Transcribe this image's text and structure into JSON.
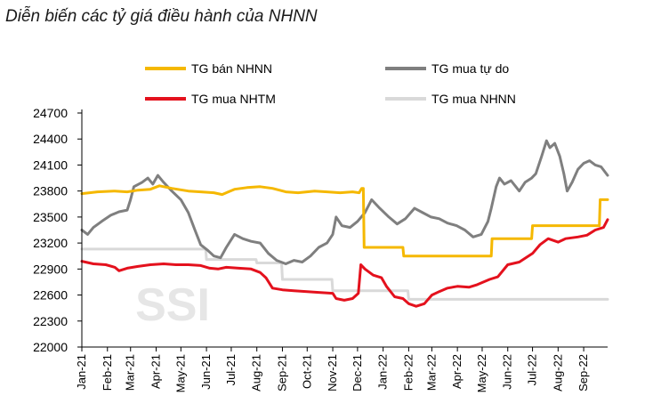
{
  "chart_data": {
    "type": "line",
    "title": "Diễn biến các tỷ giá điều hành của NHNN",
    "watermark": "SSI",
    "xlabel": "",
    "ylabel": "",
    "ylim": [
      22000,
      24700
    ],
    "y_ticks": [
      22000,
      22300,
      22600,
      22900,
      23200,
      23500,
      23800,
      24100,
      24400,
      24700
    ],
    "x_range": [
      "2021-01-01",
      "2022-09-30"
    ],
    "x_ticks": [
      {
        "label": "Jan-21",
        "date": "2021-01-01"
      },
      {
        "label": "Feb-21",
        "date": "2021-02-01"
      },
      {
        "label": "Mar-21",
        "date": "2021-03-01"
      },
      {
        "label": "Apr-21",
        "date": "2021-04-01"
      },
      {
        "label": "May-21",
        "date": "2021-05-01"
      },
      {
        "label": "Jun-21",
        "date": "2021-06-01"
      },
      {
        "label": "Jul-21",
        "date": "2021-07-01"
      },
      {
        "label": "Aug-21",
        "date": "2021-08-01"
      },
      {
        "label": "Sep-21",
        "date": "2021-09-01"
      },
      {
        "label": "Oct-21",
        "date": "2021-10-01"
      },
      {
        "label": "Nov-21",
        "date": "2021-11-01"
      },
      {
        "label": "Dec-21",
        "date": "2021-12-01"
      },
      {
        "label": "Jan-22",
        "date": "2022-01-01"
      },
      {
        "label": "Feb-22",
        "date": "2022-02-01"
      },
      {
        "label": "Mar-22",
        "date": "2022-03-01"
      },
      {
        "label": "Apr-22",
        "date": "2022-04-01"
      },
      {
        "label": "May-22",
        "date": "2022-05-01"
      },
      {
        "label": "Jun-22",
        "date": "2022-06-01"
      },
      {
        "label": "Jul-22",
        "date": "2022-07-01"
      },
      {
        "label": "Aug-22",
        "date": "2022-08-01"
      },
      {
        "label": "Sep-22",
        "date": "2022-09-01"
      }
    ],
    "grid": false,
    "legend_position": "top",
    "series": [
      {
        "name": "TG bán NHNN",
        "color": "#f5b800",
        "points": [
          [
            "2021-01-01",
            23770
          ],
          [
            "2021-01-20",
            23790
          ],
          [
            "2021-02-10",
            23800
          ],
          [
            "2021-02-25",
            23790
          ],
          [
            "2021-03-10",
            23810
          ],
          [
            "2021-03-25",
            23820
          ],
          [
            "2021-04-05",
            23860
          ],
          [
            "2021-04-20",
            23830
          ],
          [
            "2021-05-10",
            23800
          ],
          [
            "2021-05-25",
            23790
          ],
          [
            "2021-06-10",
            23780
          ],
          [
            "2021-06-20",
            23760
          ],
          [
            "2021-07-05",
            23820
          ],
          [
            "2021-07-20",
            23840
          ],
          [
            "2021-08-05",
            23850
          ],
          [
            "2021-08-20",
            23830
          ],
          [
            "2021-09-05",
            23790
          ],
          [
            "2021-09-20",
            23780
          ],
          [
            "2021-10-10",
            23800
          ],
          [
            "2021-10-25",
            23790
          ],
          [
            "2021-11-10",
            23780
          ],
          [
            "2021-11-25",
            23790
          ],
          [
            "2021-12-03",
            23780
          ],
          [
            "2021-12-06",
            23830
          ],
          [
            "2021-12-08",
            23830
          ],
          [
            "2021-12-09",
            23150
          ],
          [
            "2022-01-25",
            23150
          ],
          [
            "2022-01-26",
            23050
          ],
          [
            "2022-05-12",
            23050
          ],
          [
            "2022-05-13",
            23250
          ],
          [
            "2022-06-30",
            23250
          ],
          [
            "2022-07-01",
            23400
          ],
          [
            "2022-09-20",
            23400
          ],
          [
            "2022-09-21",
            23700
          ],
          [
            "2022-09-30",
            23700
          ]
        ]
      },
      {
        "name": "TG mua tự do",
        "color": "#7f7f7f",
        "points": [
          [
            "2021-01-01",
            23350
          ],
          [
            "2021-01-08",
            23300
          ],
          [
            "2021-01-15",
            23380
          ],
          [
            "2021-01-25",
            23450
          ],
          [
            "2021-02-05",
            23520
          ],
          [
            "2021-02-15",
            23560
          ],
          [
            "2021-02-25",
            23580
          ],
          [
            "2021-03-01",
            23700
          ],
          [
            "2021-03-05",
            23850
          ],
          [
            "2021-03-15",
            23900
          ],
          [
            "2021-03-22",
            23950
          ],
          [
            "2021-03-28",
            23880
          ],
          [
            "2021-04-03",
            23980
          ],
          [
            "2021-04-10",
            23900
          ],
          [
            "2021-04-20",
            23800
          ],
          [
            "2021-05-01",
            23700
          ],
          [
            "2021-05-10",
            23550
          ],
          [
            "2021-05-18",
            23350
          ],
          [
            "2021-05-25",
            23180
          ],
          [
            "2021-06-02",
            23120
          ],
          [
            "2021-06-10",
            23050
          ],
          [
            "2021-06-18",
            23030
          ],
          [
            "2021-06-25",
            23150
          ],
          [
            "2021-07-05",
            23300
          ],
          [
            "2021-07-15",
            23250
          ],
          [
            "2021-07-25",
            23220
          ],
          [
            "2021-08-05",
            23200
          ],
          [
            "2021-08-15",
            23080
          ],
          [
            "2021-08-25",
            23000
          ],
          [
            "2021-09-05",
            22960
          ],
          [
            "2021-09-15",
            23000
          ],
          [
            "2021-09-25",
            22980
          ],
          [
            "2021-10-05",
            23050
          ],
          [
            "2021-10-15",
            23150
          ],
          [
            "2021-10-25",
            23200
          ],
          [
            "2021-11-01",
            23300
          ],
          [
            "2021-11-05",
            23500
          ],
          [
            "2021-11-12",
            23400
          ],
          [
            "2021-11-22",
            23380
          ],
          [
            "2021-12-01",
            23450
          ],
          [
            "2021-12-10",
            23550
          ],
          [
            "2021-12-18",
            23700
          ],
          [
            "2021-12-28",
            23600
          ],
          [
            "2022-01-08",
            23500
          ],
          [
            "2022-01-18",
            23420
          ],
          [
            "2022-01-28",
            23480
          ],
          [
            "2022-02-08",
            23600
          ],
          [
            "2022-02-18",
            23550
          ],
          [
            "2022-02-28",
            23500
          ],
          [
            "2022-03-10",
            23480
          ],
          [
            "2022-03-20",
            23430
          ],
          [
            "2022-03-31",
            23400
          ],
          [
            "2022-04-10",
            23350
          ],
          [
            "2022-04-20",
            23270
          ],
          [
            "2022-04-30",
            23300
          ],
          [
            "2022-05-08",
            23450
          ],
          [
            "2022-05-12",
            23600
          ],
          [
            "2022-05-18",
            23850
          ],
          [
            "2022-05-22",
            23950
          ],
          [
            "2022-05-28",
            23880
          ],
          [
            "2022-06-05",
            23920
          ],
          [
            "2022-06-15",
            23800
          ],
          [
            "2022-06-22",
            23900
          ],
          [
            "2022-06-30",
            23950
          ],
          [
            "2022-07-05",
            24000
          ],
          [
            "2022-07-12",
            24200
          ],
          [
            "2022-07-18",
            24380
          ],
          [
            "2022-07-22",
            24300
          ],
          [
            "2022-07-28",
            24350
          ],
          [
            "2022-08-03",
            24200
          ],
          [
            "2022-08-08",
            24000
          ],
          [
            "2022-08-12",
            23800
          ],
          [
            "2022-08-18",
            23900
          ],
          [
            "2022-08-25",
            24050
          ],
          [
            "2022-09-01",
            24120
          ],
          [
            "2022-09-08",
            24150
          ],
          [
            "2022-09-15",
            24100
          ],
          [
            "2022-09-22",
            24080
          ],
          [
            "2022-09-30",
            23980
          ]
        ]
      },
      {
        "name": "TG mua NHTM",
        "color": "#e4111d",
        "points": [
          [
            "2021-01-01",
            22990
          ],
          [
            "2021-01-15",
            22960
          ],
          [
            "2021-01-30",
            22950
          ],
          [
            "2021-02-10",
            22920
          ],
          [
            "2021-02-15",
            22880
          ],
          [
            "2021-02-25",
            22910
          ],
          [
            "2021-03-10",
            22930
          ],
          [
            "2021-03-25",
            22950
          ],
          [
            "2021-04-10",
            22960
          ],
          [
            "2021-04-25",
            22950
          ],
          [
            "2021-05-10",
            22950
          ],
          [
            "2021-05-25",
            22940
          ],
          [
            "2021-06-05",
            22910
          ],
          [
            "2021-06-15",
            22900
          ],
          [
            "2021-06-25",
            22920
          ],
          [
            "2021-07-10",
            22910
          ],
          [
            "2021-07-25",
            22900
          ],
          [
            "2021-08-05",
            22860
          ],
          [
            "2021-08-12",
            22800
          ],
          [
            "2021-08-20",
            22680
          ],
          [
            "2021-09-01",
            22660
          ],
          [
            "2021-09-15",
            22650
          ],
          [
            "2021-10-01",
            22640
          ],
          [
            "2021-10-15",
            22630
          ],
          [
            "2021-11-01",
            22620
          ],
          [
            "2021-11-05",
            22560
          ],
          [
            "2021-11-15",
            22540
          ],
          [
            "2021-11-25",
            22560
          ],
          [
            "2021-12-02",
            22620
          ],
          [
            "2021-12-05",
            22950
          ],
          [
            "2021-12-10",
            22900
          ],
          [
            "2021-12-20",
            22830
          ],
          [
            "2021-12-30",
            22800
          ],
          [
            "2022-01-05",
            22700
          ],
          [
            "2022-01-15",
            22580
          ],
          [
            "2022-01-25",
            22560
          ],
          [
            "2022-02-01",
            22500
          ],
          [
            "2022-02-10",
            22470
          ],
          [
            "2022-02-20",
            22500
          ],
          [
            "2022-03-01",
            22600
          ],
          [
            "2022-03-10",
            22640
          ],
          [
            "2022-03-20",
            22680
          ],
          [
            "2022-04-01",
            22700
          ],
          [
            "2022-04-15",
            22690
          ],
          [
            "2022-04-25",
            22720
          ],
          [
            "2022-05-10",
            22780
          ],
          [
            "2022-05-20",
            22810
          ],
          [
            "2022-06-01",
            22950
          ],
          [
            "2022-06-15",
            22980
          ],
          [
            "2022-07-01",
            23080
          ],
          [
            "2022-07-10",
            23180
          ],
          [
            "2022-07-20",
            23250
          ],
          [
            "2022-08-01",
            23210
          ],
          [
            "2022-08-10",
            23250
          ],
          [
            "2022-08-25",
            23270
          ],
          [
            "2022-09-05",
            23290
          ],
          [
            "2022-09-15",
            23350
          ],
          [
            "2022-09-25",
            23380
          ],
          [
            "2022-09-30",
            23470
          ]
        ]
      },
      {
        "name": "TG mua NHNN",
        "color": "#d9d9d9",
        "points": [
          [
            "2021-01-01",
            23130
          ],
          [
            "2021-05-31",
            23130
          ],
          [
            "2021-06-01",
            23010
          ],
          [
            "2021-07-31",
            23010
          ],
          [
            "2021-08-01",
            22970
          ],
          [
            "2021-08-31",
            22970
          ],
          [
            "2021-09-01",
            22780
          ],
          [
            "2021-10-31",
            22780
          ],
          [
            "2021-11-01",
            22650
          ],
          [
            "2022-01-31",
            22650
          ],
          [
            "2022-02-01",
            22550
          ],
          [
            "2022-09-30",
            22550
          ]
        ]
      }
    ]
  }
}
